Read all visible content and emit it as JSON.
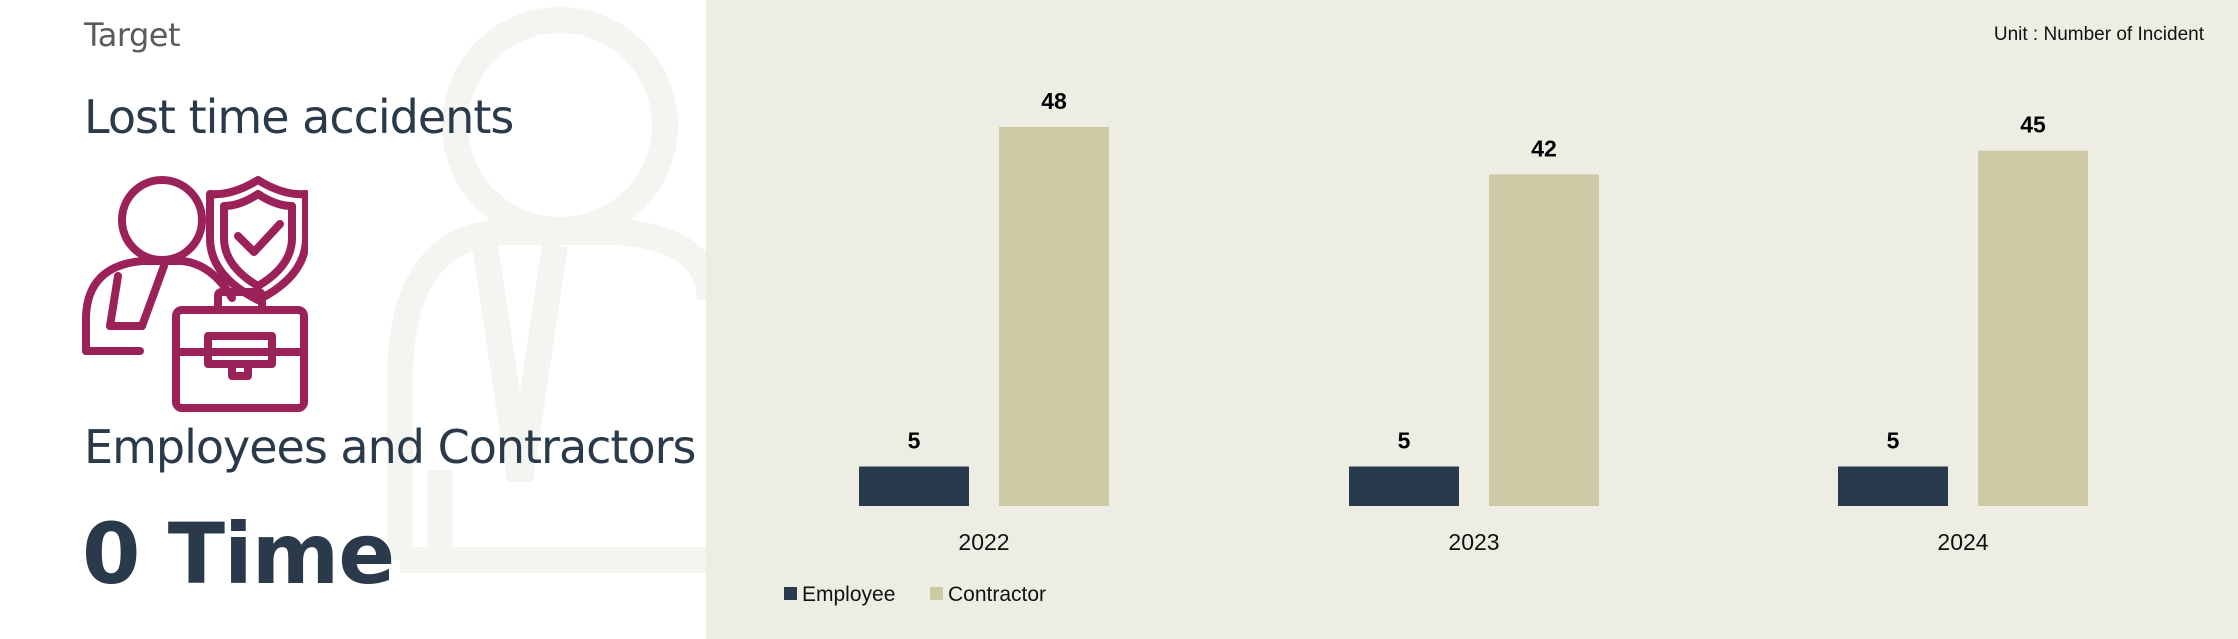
{
  "panel": {
    "target_label": "Target",
    "title": "Lost time accidents",
    "subtitle": "Employees and Contractors",
    "target_value": "0 Time",
    "icon": "injured-worker-shield-briefcase-icon",
    "icon_color": "#9b2159"
  },
  "unit_label": "Unit :  Number of Incident",
  "colors": {
    "employee": "#283a4b",
    "contractor": "#cccaa4",
    "chart_bg": "#eeede3"
  },
  "chart_data": {
    "type": "bar",
    "categories": [
      "2022",
      "2023",
      "2024"
    ],
    "series": [
      {
        "name": "Employee",
        "values": [
          5,
          5,
          5
        ]
      },
      {
        "name": "Contractor",
        "values": [
          48,
          42,
          45
        ]
      }
    ],
    "legend": [
      "Employee",
      "Contractor"
    ],
    "legend_position": "bottom-left",
    "grid": false,
    "y_axis_visible": false,
    "ylim": [
      0,
      55
    ]
  }
}
